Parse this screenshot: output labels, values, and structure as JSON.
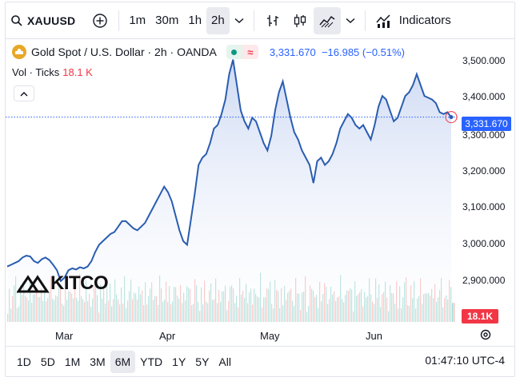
{
  "toolbar": {
    "symbol": "XAUUSD",
    "intervals": [
      "1m",
      "30m",
      "1h",
      "2h"
    ],
    "active_interval": "2h",
    "indicators_label": "Indicators"
  },
  "legend": {
    "title": "Gold Spot / U.S. Dollar · 2h · OANDA",
    "price": "3,331.670",
    "change": "−16.985 (−0.51%)",
    "vol_label": "Vol · Ticks",
    "vol_value": "18.1 K"
  },
  "price_axis": {
    "labels": [
      "3,500.000",
      "3,400.000",
      "3,300.000",
      "3,200.000",
      "3,100.000",
      "3,000.000",
      "2,900.000"
    ],
    "current_price_tag": "3,331.670",
    "volume_tag": "18.1K"
  },
  "time_axis": {
    "labels": [
      "Mar",
      "Apr",
      "May",
      "Jun"
    ]
  },
  "bottom": {
    "ranges": [
      "1D",
      "5D",
      "1M",
      "3M",
      "6M",
      "YTD",
      "1Y",
      "5Y",
      "All"
    ],
    "active_range": "6M",
    "clock": "01:47:10 UTC-4"
  },
  "watermark": {
    "brand": "KITCO"
  },
  "colors": {
    "line": "#2a5db0",
    "area_top": "#c9d6f2",
    "area_bottom": "#ffffff",
    "price_tag": "#2962ff",
    "volume_up": "#26a69a",
    "volume_down": "#ef5350"
  },
  "chart_data": {
    "type": "area",
    "ylim": [
      2860,
      3520
    ],
    "x_labels": [
      "Mar",
      "Apr",
      "May",
      "Jun"
    ],
    "series": [
      {
        "points": [
          2920,
          2925,
          2930,
          2935,
          2945,
          2950,
          2948,
          2935,
          2930,
          2940,
          2945,
          2938,
          2925,
          2910,
          2880,
          2890,
          2910,
          2915,
          2912,
          2918,
          2915,
          2920,
          2935,
          2960,
          2980,
          2990,
          3000,
          3010,
          3015,
          3030,
          3045,
          3045,
          3035,
          3025,
          3020,
          3030,
          3040,
          3060,
          3080,
          3100,
          3120,
          3140,
          3125,
          3100,
          3060,
          3020,
          2990,
          2980,
          3050,
          3120,
          3200,
          3220,
          3230,
          3260,
          3300,
          3310,
          3340,
          3380,
          3450,
          3490,
          3420,
          3350,
          3320,
          3300,
          3330,
          3320,
          3290,
          3260,
          3240,
          3280,
          3350,
          3400,
          3430,
          3380,
          3330,
          3290,
          3270,
          3240,
          3220,
          3200,
          3150,
          3210,
          3220,
          3200,
          3210,
          3230,
          3260,
          3300,
          3320,
          3340,
          3330,
          3310,
          3300,
          3310,
          3290,
          3270,
          3310,
          3360,
          3390,
          3380,
          3350,
          3320,
          3330,
          3360,
          3390,
          3400,
          3420,
          3450,
          3420,
          3390,
          3385,
          3380,
          3370,
          3345,
          3340,
          3345,
          3331.67
        ]
      }
    ],
    "volume_label": "Vol · Ticks",
    "last_volume": "18.1K"
  }
}
